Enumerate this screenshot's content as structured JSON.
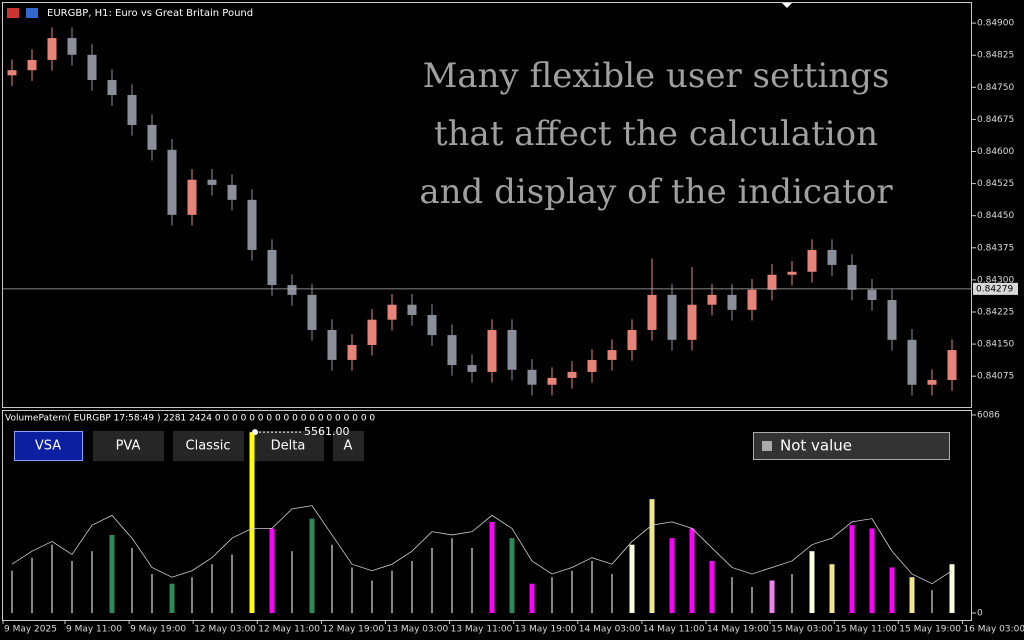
{
  "overlay_text": [
    "Many flexible user settings",
    "that affect the calculation",
    "and display of the indicator"
  ],
  "buttons": [
    "VSA",
    "PVA",
    "Classic",
    "Delta",
    "A"
  ],
  "status_box": "Not value",
  "x_labels": [
    "9 May 2025",
    "9 May 11:00",
    "9 May 19:00",
    "12 May 03:00",
    "12 May 11:00",
    "12 May 19:00",
    "13 May 03:00",
    "13 May 11:00",
    "13 May 19:00",
    "14 May 03:00",
    "14 May 11:00",
    "14 May 19:00",
    "15 May 03:00",
    "15 May 11:00",
    "15 May 19:00",
    "16 May 03:00"
  ],
  "chart_data": [
    {
      "type": "candlestick",
      "title": "EURGBP, H1:  Euro vs Great Britain Pound",
      "up_color": "#e8837a",
      "down_color": "#8a8f99",
      "open": [
        0.84778,
        0.8479,
        0.84814,
        0.84865,
        0.84826,
        0.84767,
        0.84732,
        0.84662,
        0.84604,
        0.84452,
        0.84534,
        0.84522,
        0.84487,
        0.8437,
        0.84288,
        0.84265,
        0.84183,
        0.84113,
        0.84148,
        0.84207,
        0.84242,
        0.84218,
        0.84171,
        0.84101,
        0.84085,
        0.84183,
        0.8409,
        0.84055,
        0.84071,
        0.84085,
        0.84113,
        0.84136,
        0.84183,
        0.84265,
        0.8416,
        0.84242,
        0.84265,
        0.8423,
        0.84277,
        0.84312,
        0.84319,
        0.8437,
        0.84335,
        0.84277,
        0.84253,
        0.8416,
        0.84055,
        0.84066
      ],
      "high": [
        0.84815,
        0.84839,
        0.8489,
        0.8489,
        0.84851,
        0.84792,
        0.84757,
        0.84687,
        0.84629,
        0.84559,
        0.84559,
        0.84547,
        0.84512,
        0.84395,
        0.84313,
        0.8429,
        0.84208,
        0.84173,
        0.84232,
        0.84267,
        0.84267,
        0.84243,
        0.84196,
        0.84126,
        0.84208,
        0.84208,
        0.84115,
        0.84096,
        0.8411,
        0.84138,
        0.84161,
        0.84208,
        0.8435,
        0.8429,
        0.8433,
        0.8429,
        0.8429,
        0.84302,
        0.84337,
        0.84344,
        0.84395,
        0.84395,
        0.8436,
        0.84302,
        0.84278,
        0.84185,
        0.84091,
        0.84161
      ],
      "low": [
        0.84753,
        0.84765,
        0.84789,
        0.84801,
        0.84742,
        0.84707,
        0.84637,
        0.84579,
        0.84427,
        0.84427,
        0.84497,
        0.84462,
        0.84345,
        0.84263,
        0.8424,
        0.84158,
        0.84088,
        0.84088,
        0.84123,
        0.84182,
        0.84193,
        0.84146,
        0.84076,
        0.8406,
        0.8406,
        0.84065,
        0.8403,
        0.8403,
        0.84046,
        0.8406,
        0.84088,
        0.84111,
        0.84158,
        0.84135,
        0.84135,
        0.84217,
        0.84205,
        0.84205,
        0.84252,
        0.84287,
        0.84294,
        0.8431,
        0.84252,
        0.84228,
        0.84135,
        0.8403,
        0.8403,
        0.84041
      ],
      "close": [
        0.8479,
        0.84814,
        0.84865,
        0.84826,
        0.84767,
        0.84732,
        0.84662,
        0.84604,
        0.84452,
        0.84534,
        0.84522,
        0.84487,
        0.8437,
        0.84288,
        0.84265,
        0.84183,
        0.84113,
        0.84148,
        0.84207,
        0.84242,
        0.84218,
        0.84171,
        0.84101,
        0.84085,
        0.84183,
        0.8409,
        0.84055,
        0.84071,
        0.84085,
        0.84113,
        0.84136,
        0.84183,
        0.84265,
        0.8416,
        0.84242,
        0.84265,
        0.8423,
        0.84277,
        0.84312,
        0.84319,
        0.8437,
        0.84335,
        0.84277,
        0.84253,
        0.8416,
        0.84055,
        0.84066,
        0.84136
      ],
      "ylim": [
        0.84003,
        0.84954
      ],
      "yticks": [
        {
          "value": 0.849,
          "label": "0.84900"
        },
        {
          "value": 0.84825,
          "label": "0.84825"
        },
        {
          "value": 0.8475,
          "label": "0.84750"
        },
        {
          "value": 0.84675,
          "label": "0.84675"
        },
        {
          "value": 0.846,
          "label": "0.84600"
        },
        {
          "value": 0.84525,
          "label": "0.84525"
        },
        {
          "value": 0.8445,
          "label": "0.84450"
        },
        {
          "value": 0.84375,
          "label": "0.84375"
        },
        {
          "value": 0.843,
          "label": "0.84300"
        },
        {
          "value": 0.84225,
          "label": "0.84225"
        },
        {
          "value": 0.8415,
          "label": "0.84150"
        },
        {
          "value": 0.84075,
          "label": "0.84075"
        }
      ],
      "current_price": 0.84279
    },
    {
      "type": "bar",
      "title": "VolumePatern( EURGBP 17:58:49 ) 2281 2424 0 0 0 0 0 0 0 0 0 0 0 0 0 0 0 0 0 0 0",
      "values": [
        1300,
        1700,
        2100,
        1600,
        1900,
        2400,
        2000,
        1200,
        900,
        1100,
        1500,
        1800,
        5561,
        2600,
        1900,
        2900,
        2100,
        1400,
        1000,
        1300,
        1600,
        2000,
        2300,
        2000,
        2800,
        2300,
        900,
        1100,
        1300,
        1600,
        1200,
        2100,
        3500,
        2300,
        2600,
        1600,
        1100,
        800,
        1000,
        1200,
        1900,
        1500,
        2700,
        2600,
        1400,
        1100,
        700,
        1500
      ],
      "colors": [
        "#b0b0b0",
        "#b0b0b0",
        "#b0b0b0",
        "#b0b0b0",
        "#b0b0b0",
        "#2e8b57",
        "#b0b0b0",
        "#b0b0b0",
        "#2e8b57",
        "#b0b0b0",
        "#b0b0b0",
        "#b0b0b0",
        "#ffff00",
        "#ff00ff",
        "#b0b0b0",
        "#2e8b57",
        "#b0b0b0",
        "#b0b0b0",
        "#b0b0b0",
        "#b0b0b0",
        "#b0b0b0",
        "#b0b0b0",
        "#b0b0b0",
        "#b0b0b0",
        "#ff00ff",
        "#2e8b57",
        "#ff00ff",
        "#b0b0b0",
        "#b0b0b0",
        "#b0b0b0",
        "#b0b0b0",
        "#ffffe0",
        "#f0e68c",
        "#ff00ff",
        "#ff00ff",
        "#ff00ff",
        "#b0b0b0",
        "#b0b0b0",
        "#ee82ee",
        "#b0b0b0",
        "#ffffe0",
        "#f0e68c",
        "#ff00ff",
        "#ff00ff",
        "#ff00ff",
        "#f0e68c",
        "#b0b0b0",
        "#ffffe0"
      ],
      "peak_label": "5561.00",
      "line": {
        "color": "#d0d0d0",
        "values": [
          1500,
          1900,
          2200,
          1800,
          2700,
          3000,
          2300,
          1400,
          1100,
          1300,
          1700,
          2300,
          2600,
          2600,
          3200,
          3300,
          2400,
          1500,
          1300,
          1500,
          1900,
          2500,
          2400,
          2500,
          3000,
          2600,
          1600,
          1200,
          1400,
          1700,
          1500,
          2200,
          2700,
          2800,
          2600,
          2000,
          1400,
          1200,
          1400,
          1600,
          2100,
          2300,
          2800,
          2900,
          1900,
          1200,
          900,
          1300
        ]
      },
      "ylim": [
        0,
        6086
      ],
      "yticks": [
        0,
        6086
      ]
    }
  ]
}
